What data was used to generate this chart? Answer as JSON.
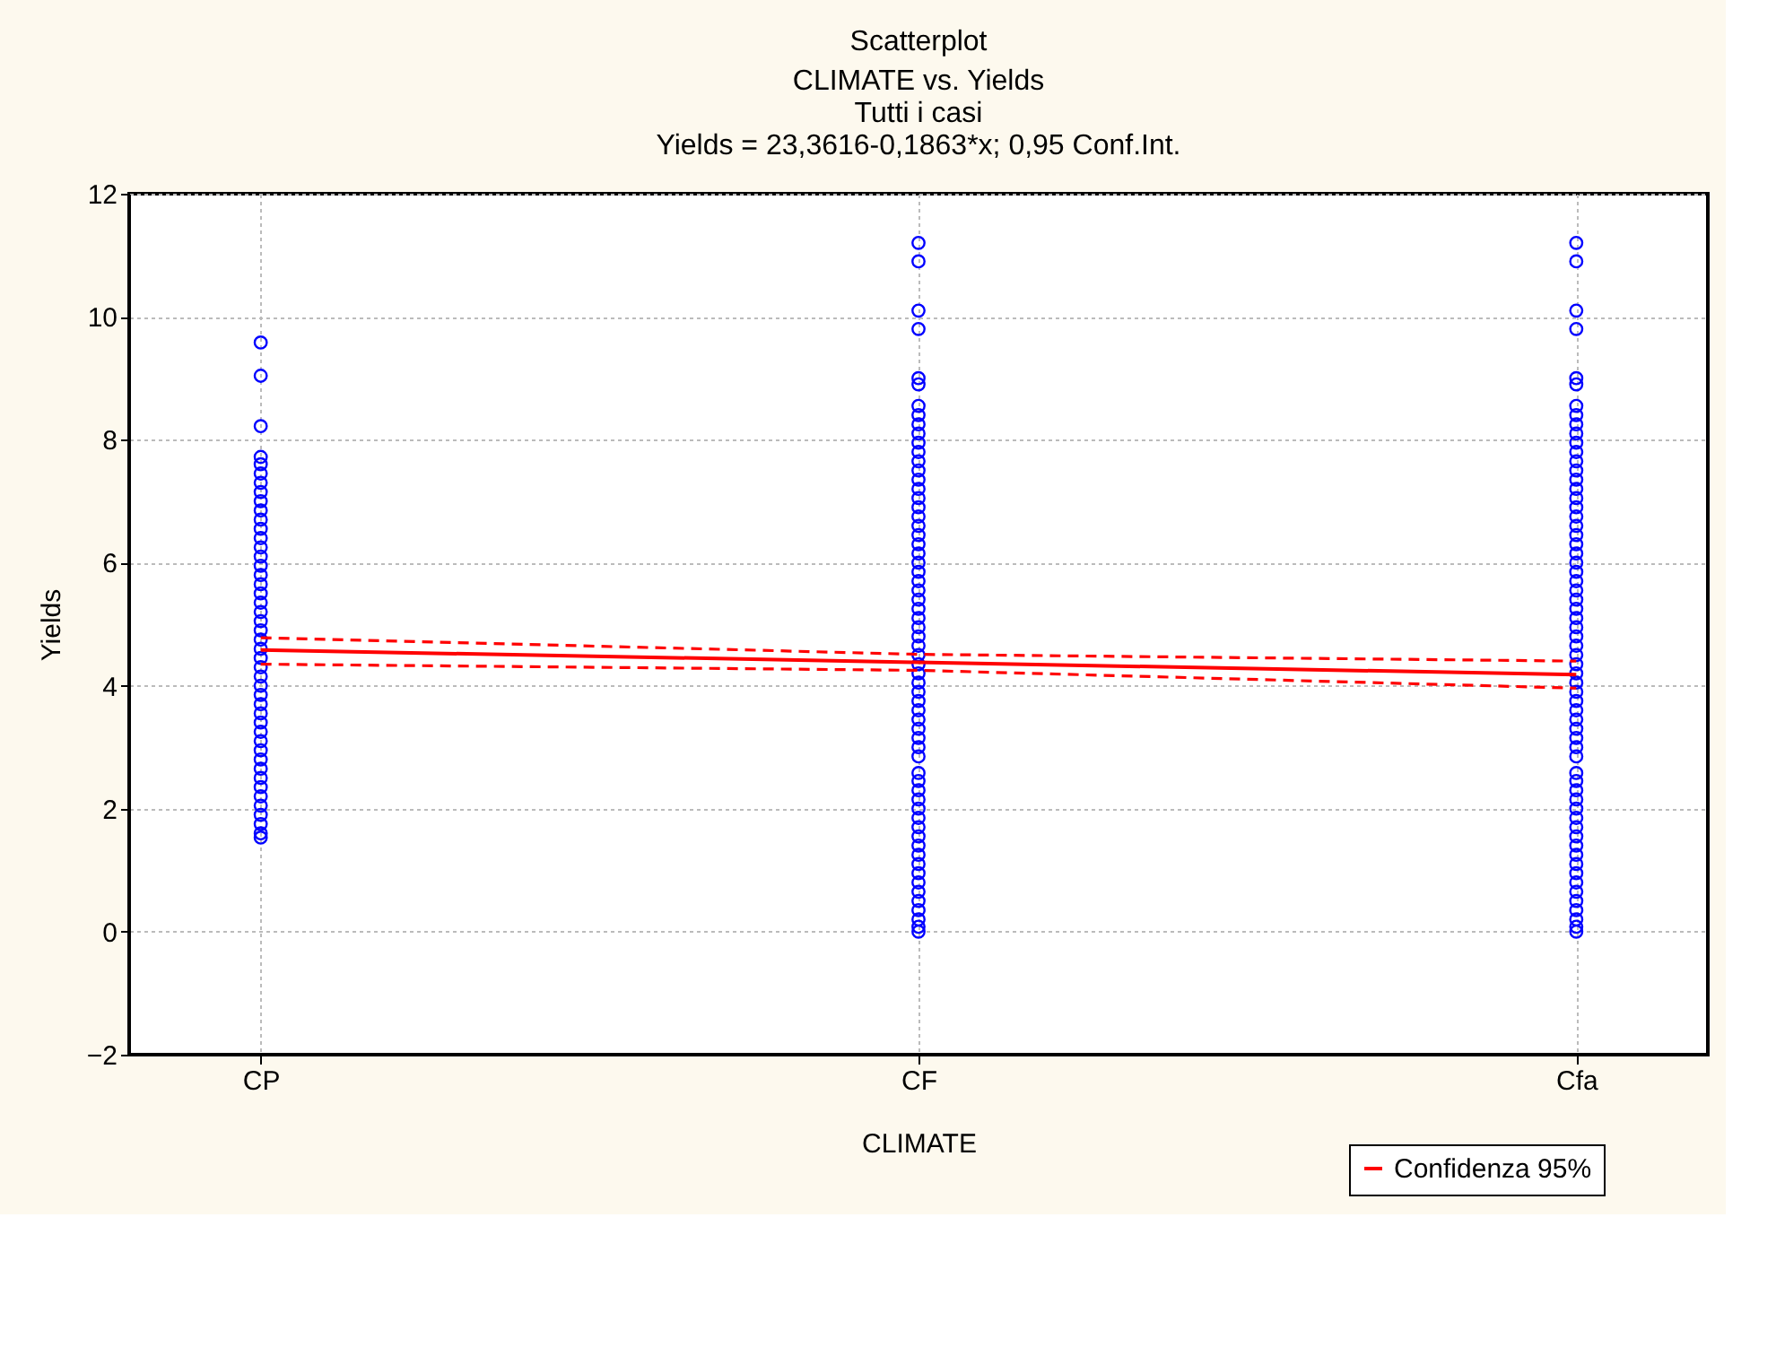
{
  "chart_data": {
    "type": "scatter",
    "title": "Scatterplot",
    "subtitle": "CLIMATE vs. Yields",
    "annotations": [
      "Tutti i casi",
      "Yields = 23,3616-0,1863*x; 0,95 Conf.Int."
    ],
    "xlabel": "CLIMATE",
    "ylabel": "Yields",
    "categories": [
      "CP",
      "CF",
      "Cfa"
    ],
    "ylim": [
      -2,
      12
    ],
    "yticks": [
      -2,
      0,
      2,
      4,
      6,
      8,
      10,
      12
    ],
    "grid": true,
    "legend": "bottom right",
    "series": [
      {
        "marker": "circle",
        "color": "#0000ff",
        "x": [
          "CP",
          "CP",
          "CP",
          "CP",
          "CP",
          "CP",
          "CP",
          "CP",
          "CP",
          "CP",
          "CP",
          "CP",
          "CP",
          "CP",
          "CP",
          "CP",
          "CP",
          "CP",
          "CP",
          "CP",
          "CP",
          "CP",
          "CP",
          "CP",
          "CP",
          "CP",
          "CP",
          "CP",
          "CP",
          "CP",
          "CP",
          "CP",
          "CP",
          "CP",
          "CP",
          "CP",
          "CP",
          "CP",
          "CP",
          "CP",
          "CP",
          "CP",
          "CP",
          "CP",
          "CP",
          "CP"
        ],
        "values": [
          9.58,
          9.04,
          8.22,
          7.72,
          7.6,
          7.45,
          7.3,
          7.15,
          7.0,
          6.85,
          6.7,
          6.55,
          6.4,
          6.25,
          6.1,
          5.95,
          5.8,
          5.65,
          5.5,
          5.35,
          5.2,
          5.05,
          4.9,
          4.75,
          4.6,
          4.45,
          4.3,
          4.15,
          4.0,
          3.85,
          3.7,
          3.55,
          3.4,
          3.25,
          3.1,
          2.95,
          2.8,
          2.65,
          2.5,
          2.35,
          2.2,
          2.05,
          1.9,
          1.75,
          1.6,
          1.53
        ]
      },
      {
        "marker": "circle",
        "color": "#0000ff",
        "x": [
          "CF",
          "CF",
          "CF",
          "CF",
          "CF",
          "CF",
          "CF",
          "CF",
          "CF",
          "CF",
          "CF",
          "CF",
          "CF",
          "CF",
          "CF",
          "CF",
          "CF",
          "CF",
          "CF",
          "CF",
          "CF",
          "CF",
          "CF",
          "CF",
          "CF",
          "CF",
          "CF",
          "CF",
          "CF",
          "CF",
          "CF",
          "CF",
          "CF",
          "CF",
          "CF",
          "CF",
          "CF",
          "CF",
          "CF",
          "CF",
          "CF",
          "CF",
          "CF",
          "CF",
          "CF",
          "CF",
          "CF",
          "CF",
          "CF",
          "CF",
          "CF",
          "CF",
          "CF",
          "CF",
          "CF",
          "CF",
          "CF",
          "CF",
          "CF",
          "CF",
          "CF",
          "CF",
          "CF",
          "CF"
        ],
        "values": [
          11.2,
          10.9,
          10.1,
          9.8,
          9.0,
          8.9,
          8.55,
          8.4,
          8.25,
          8.1,
          7.95,
          7.8,
          7.65,
          7.5,
          7.35,
          7.2,
          7.05,
          6.9,
          6.75,
          6.6,
          6.45,
          6.3,
          6.15,
          6.0,
          5.85,
          5.7,
          5.55,
          5.4,
          5.25,
          5.1,
          4.95,
          4.8,
          4.65,
          4.5,
          4.35,
          4.2,
          4.05,
          3.9,
          3.75,
          3.6,
          3.45,
          3.3,
          3.15,
          3.0,
          2.85,
          2.58,
          2.45,
          2.3,
          2.15,
          2.0,
          1.85,
          1.7,
          1.55,
          1.4,
          1.25,
          1.1,
          0.95,
          0.8,
          0.65,
          0.5,
          0.35,
          0.2,
          0.08,
          0.0
        ]
      },
      {
        "marker": "circle",
        "color": "#0000ff",
        "x": [
          "Cfa",
          "Cfa",
          "Cfa",
          "Cfa",
          "Cfa",
          "Cfa",
          "Cfa",
          "Cfa",
          "Cfa",
          "Cfa",
          "Cfa",
          "Cfa",
          "Cfa",
          "Cfa",
          "Cfa",
          "Cfa",
          "Cfa",
          "Cfa",
          "Cfa",
          "Cfa",
          "Cfa",
          "Cfa",
          "Cfa",
          "Cfa",
          "Cfa",
          "Cfa",
          "Cfa",
          "Cfa",
          "Cfa",
          "Cfa",
          "Cfa",
          "Cfa",
          "Cfa",
          "Cfa",
          "Cfa",
          "Cfa",
          "Cfa",
          "Cfa",
          "Cfa",
          "Cfa",
          "Cfa",
          "Cfa",
          "Cfa",
          "Cfa",
          "Cfa",
          "Cfa",
          "Cfa",
          "Cfa",
          "Cfa",
          "Cfa",
          "Cfa",
          "Cfa",
          "Cfa",
          "Cfa",
          "Cfa",
          "Cfa",
          "Cfa",
          "Cfa",
          "Cfa",
          "Cfa",
          "Cfa",
          "Cfa",
          "Cfa",
          "Cfa"
        ],
        "values": [
          11.2,
          10.9,
          10.1,
          9.8,
          9.0,
          8.9,
          8.55,
          8.4,
          8.25,
          8.1,
          7.95,
          7.8,
          7.65,
          7.5,
          7.35,
          7.2,
          7.05,
          6.9,
          6.75,
          6.6,
          6.45,
          6.3,
          6.15,
          6.0,
          5.85,
          5.7,
          5.55,
          5.4,
          5.25,
          5.1,
          4.95,
          4.8,
          4.65,
          4.5,
          4.35,
          4.2,
          4.05,
          3.9,
          3.75,
          3.6,
          3.45,
          3.3,
          3.15,
          3.0,
          2.85,
          2.58,
          2.45,
          2.3,
          2.15,
          2.0,
          1.85,
          1.7,
          1.55,
          1.4,
          1.25,
          1.1,
          0.95,
          0.8,
          0.65,
          0.5,
          0.35,
          0.2,
          0.08,
          0.0
        ]
      },
      {
        "type": "line",
        "name": "Confidenza 95%",
        "color": "#ff0000",
        "line_style": "solid",
        "marker": "none",
        "x": [
          "CP",
          "CF",
          "Cfa"
        ],
        "values": [
          4.58,
          4.38,
          4.18
        ]
      },
      {
        "type": "line",
        "color": "#ff0000",
        "line_style": "dashed",
        "marker": "none",
        "x": [
          "CP",
          "CF",
          "Cfa"
        ],
        "values": [
          4.78,
          4.51,
          4.4
        ]
      },
      {
        "type": "line",
        "color": "#ff0000",
        "line_style": "dashed",
        "marker": "none",
        "x": [
          "CP",
          "CF",
          "Cfa"
        ],
        "values": [
          4.35,
          4.25,
          3.96
        ]
      }
    ]
  }
}
